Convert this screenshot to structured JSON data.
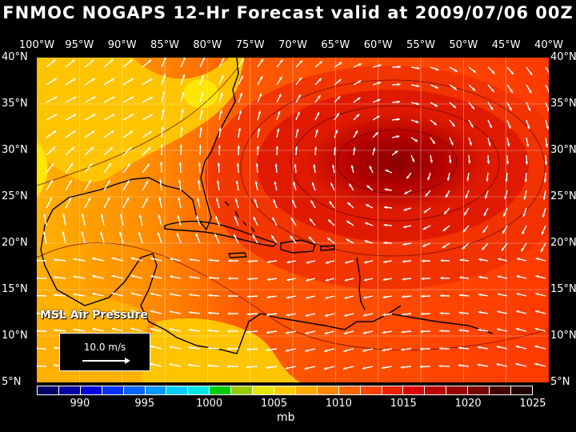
{
  "title": "FNMOC NOGAPS 12-Hr Forecast valid at 2009/07/06 00Z",
  "longitudes": [
    "100°W",
    "95°W",
    "90°W",
    "85°W",
    "80°W",
    "75°W",
    "70°W",
    "65°W",
    "60°W",
    "55°W",
    "50°W",
    "45°W",
    "40°W"
  ],
  "latitudes": [
    "40°N",
    "35°N",
    "30°N",
    "25°N",
    "20°N",
    "15°N",
    "10°N",
    "5°N"
  ],
  "field_label": "MSL Air Pressure",
  "reference_vector": "10.0 m/s",
  "colorbar": {
    "unit": "mb",
    "tick_labels": [
      "990",
      "995",
      "1000",
      "1005",
      "1010",
      "1015",
      "1020",
      "1025"
    ],
    "colors": [
      "#000066",
      "#0000a0",
      "#0000dd",
      "#0033ff",
      "#0066ff",
      "#0099ff",
      "#00ccff",
      "#00e6e6",
      "#00cc00",
      "#99cc00",
      "#e6e600",
      "#ffcc00",
      "#ffaa00",
      "#ff8800",
      "#ff6600",
      "#ff4400",
      "#ee2200",
      "#dd0000",
      "#bb0000",
      "#990000",
      "#770000",
      "#440000",
      "#220000"
    ]
  },
  "field_colors": {
    "lowest": "#ffdd00",
    "low": "#ffaa00",
    "mid": "#ff6a00",
    "high": "#ee2200",
    "peak": "#9a0000"
  }
}
